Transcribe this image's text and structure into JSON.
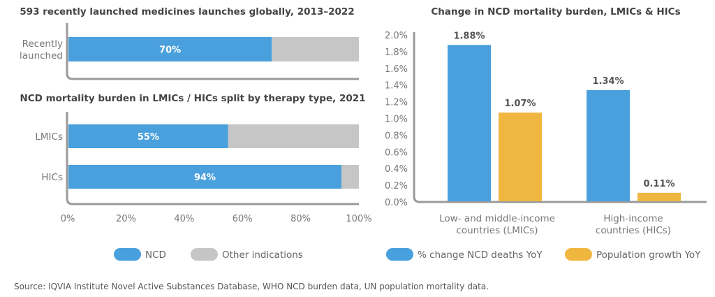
{
  "source": "Source: IQVIA Institute Novel Active Substances Database, WHO NCD burden data, UN population mortality data.",
  "colors": {
    "ncd": "#4aa0dc",
    "other": "#c6c6c6",
    "population": "#f0b740",
    "axis": "#9a9a9a"
  },
  "chart_data": [
    {
      "type": "bar",
      "orientation": "horizontal",
      "stacked": true,
      "title": "593 recently launched medicines launches globally, 2013–2022",
      "categories": [
        "Recently launched"
      ],
      "category_lines": [
        [
          "Recently",
          "launched"
        ]
      ],
      "series": [
        {
          "name": "NCD",
          "values": [
            70
          ],
          "labels": [
            "70%"
          ]
        },
        {
          "name": "Other indications",
          "values": [
            30
          ]
        }
      ],
      "xlim": [
        0,
        100
      ]
    },
    {
      "type": "bar",
      "orientation": "horizontal",
      "stacked": true,
      "title": "NCD mortality burden in LMICs / HICs split by therapy type, 2021",
      "categories": [
        "LMICs",
        "HICs"
      ],
      "series": [
        {
          "name": "NCD",
          "values": [
            55,
            94
          ],
          "labels": [
            "55%",
            "94%"
          ]
        },
        {
          "name": "Other indications",
          "values": [
            45,
            6
          ]
        }
      ],
      "xlim": [
        0,
        100
      ],
      "xticks": [
        "0%",
        "20%",
        "40%",
        "60%",
        "80%",
        "100%"
      ],
      "legend": {
        "position": "bottom",
        "entries": [
          "NCD",
          "Other indications"
        ]
      }
    },
    {
      "type": "bar",
      "orientation": "vertical",
      "title": "Change in NCD mortality burden, LMICs & HICs",
      "categories": [
        "Low- and middle-income countries (LMICs)",
        "High-income countries (HICs)"
      ],
      "category_lines": [
        [
          "Low- and middle-income",
          "countries (LMICs)"
        ],
        [
          "High-income",
          "countries (HICs)"
        ]
      ],
      "series": [
        {
          "name": "% change NCD deaths YoY",
          "values": [
            1.88,
            1.34
          ],
          "labels": [
            "1.88%",
            "1.34%"
          ]
        },
        {
          "name": "Population growth YoY",
          "values": [
            1.07,
            0.11
          ],
          "labels": [
            "1.07%",
            "0.11%"
          ]
        }
      ],
      "ylim": [
        0,
        2.0
      ],
      "yticks": [
        "0.0%",
        "0.2%",
        "0.4%",
        "0.6%",
        "0.8%",
        "1.0%",
        "1.2%",
        "1.4%",
        "1.6%",
        "1.8%",
        "2.0%"
      ],
      "grid": false,
      "legend": {
        "position": "bottom",
        "entries": [
          "% change NCD deaths YoY",
          "Population growth YoY"
        ]
      }
    }
  ]
}
